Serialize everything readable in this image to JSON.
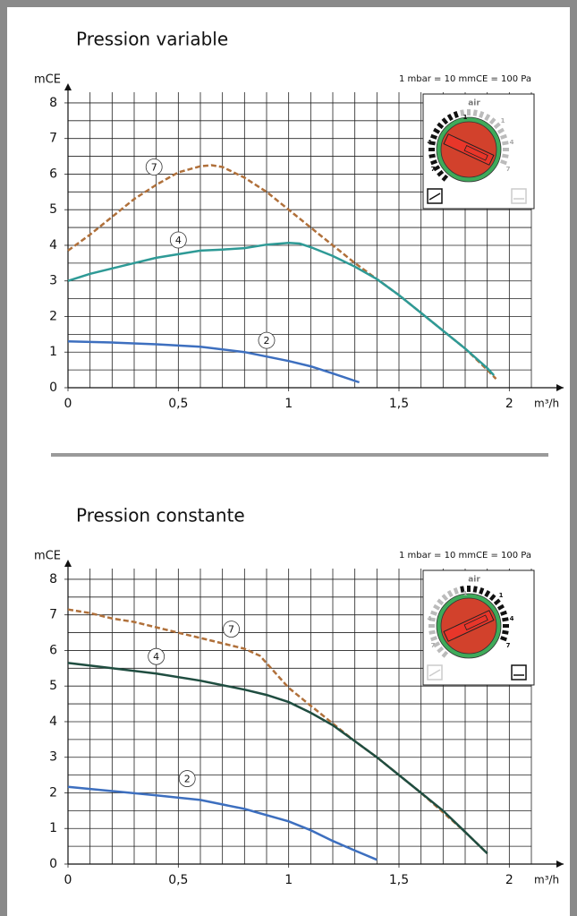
{
  "chart_data": [
    {
      "type": "line",
      "title": "Pression variable",
      "annotation": "1 mbar = 10 mmCE = 100 Pa",
      "xlabel": "m³/h",
      "ylabel": "mCE",
      "xlim": [
        0,
        2.1
      ],
      "ylim": [
        0,
        8.3
      ],
      "xticks": [
        0,
        {
          "value": 0.5,
          "label": "0,5"
        },
        1,
        {
          "value": 1.5,
          "label": "1,5"
        },
        2
      ],
      "yticks": [
        0,
        1,
        2,
        3,
        4,
        5,
        6,
        7,
        8
      ],
      "grid": true,
      "dial_labels": [
        "air",
        "1",
        "4",
        "7",
        "1",
        "4",
        "7"
      ],
      "series": [
        {
          "name": "7",
          "color": "#b0703a",
          "dashed": true,
          "x": [
            0,
            0.1,
            0.2,
            0.3,
            0.4,
            0.5,
            0.6,
            0.65,
            0.7,
            0.8,
            0.9,
            1.0,
            1.1,
            1.2,
            1.3,
            1.4,
            1.5,
            1.6,
            1.7,
            1.8,
            1.9,
            1.94
          ],
          "values": [
            3.85,
            4.3,
            4.8,
            5.3,
            5.7,
            6.05,
            6.22,
            6.25,
            6.2,
            5.9,
            5.5,
            5.0,
            4.5,
            4.0,
            3.5,
            3.05,
            2.6,
            2.1,
            1.6,
            1.1,
            0.5,
            0.25
          ]
        },
        {
          "name": "4",
          "color": "#2e9a96",
          "dashed": false,
          "x": [
            0,
            0.1,
            0.2,
            0.3,
            0.4,
            0.5,
            0.6,
            0.7,
            0.8,
            0.9,
            1.0,
            1.05,
            1.1,
            1.2,
            1.3,
            1.4,
            1.5,
            1.6,
            1.7,
            1.8,
            1.9,
            1.93
          ],
          "values": [
            3.0,
            3.2,
            3.35,
            3.5,
            3.65,
            3.75,
            3.85,
            3.88,
            3.92,
            4.02,
            4.07,
            4.05,
            3.95,
            3.7,
            3.4,
            3.05,
            2.6,
            2.1,
            1.6,
            1.1,
            0.55,
            0.35
          ]
        },
        {
          "name": "2",
          "color": "#3d6fbf",
          "dashed": false,
          "x": [
            0,
            0.2,
            0.4,
            0.6,
            0.8,
            1.0,
            1.1,
            1.2,
            1.32
          ],
          "values": [
            1.3,
            1.27,
            1.22,
            1.15,
            1.0,
            0.75,
            0.6,
            0.4,
            0.15
          ]
        }
      ]
    },
    {
      "type": "line",
      "title": "Pression constante",
      "annotation": "1 mbar = 10 mmCE = 100 Pa",
      "xlabel": "m³/h",
      "ylabel": "mCE",
      "xlim": [
        0,
        2.1
      ],
      "ylim": [
        0,
        8.3
      ],
      "xticks": [
        0,
        {
          "value": 0.5,
          "label": "0,5"
        },
        1,
        {
          "value": 1.5,
          "label": "1,5"
        },
        2
      ],
      "yticks": [
        0,
        1,
        2,
        3,
        4,
        5,
        6,
        7,
        8
      ],
      "grid": true,
      "dial_labels": [
        "air",
        "1",
        "4",
        "7",
        "1",
        "4",
        "7"
      ],
      "series": [
        {
          "name": "7",
          "color": "#b0703a",
          "dashed": true,
          "x": [
            0,
            0.1,
            0.2,
            0.3,
            0.4,
            0.5,
            0.6,
            0.7,
            0.8,
            0.87,
            0.95,
            1.0,
            1.1,
            1.2,
            1.3,
            1.4,
            1.5,
            1.6,
            1.7,
            1.8,
            1.9
          ],
          "values": [
            7.15,
            7.05,
            6.9,
            6.8,
            6.65,
            6.5,
            6.35,
            6.2,
            6.05,
            5.85,
            5.3,
            4.95,
            4.45,
            3.95,
            3.45,
            3.0,
            2.5,
            2.0,
            1.45,
            0.9,
            0.3
          ]
        },
        {
          "name": "4",
          "color": "#1f4d40",
          "dashed": false,
          "x": [
            0,
            0.2,
            0.4,
            0.6,
            0.8,
            0.9,
            1.0,
            1.1,
            1.2,
            1.3,
            1.4,
            1.5,
            1.6,
            1.7,
            1.8,
            1.9
          ],
          "values": [
            5.65,
            5.5,
            5.35,
            5.15,
            4.9,
            4.75,
            4.55,
            4.25,
            3.9,
            3.45,
            3.0,
            2.5,
            2.0,
            1.5,
            0.9,
            0.3
          ]
        },
        {
          "name": "2",
          "color": "#3d6fbf",
          "dashed": false,
          "x": [
            0,
            0.2,
            0.4,
            0.6,
            0.8,
            1.0,
            1.1,
            1.2,
            1.3,
            1.4
          ],
          "values": [
            2.17,
            2.05,
            1.93,
            1.8,
            1.55,
            1.2,
            0.95,
            0.65,
            0.38,
            0.12
          ]
        }
      ]
    }
  ]
}
